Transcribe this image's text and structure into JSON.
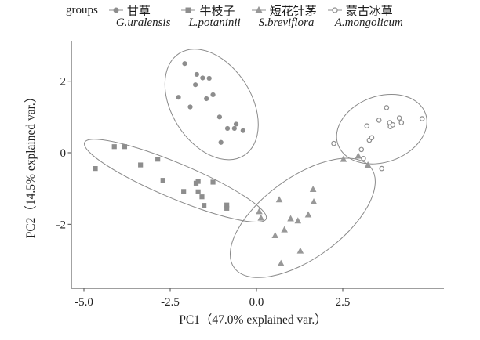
{
  "legend": {
    "title": "groups",
    "items": [
      {
        "zh": "甘草",
        "latin": "G.uralensis",
        "marker": "filled-circle"
      },
      {
        "zh": "牛枝子",
        "latin": "L.potaninii",
        "marker": "filled-square"
      },
      {
        "zh": "短花针茅",
        "latin": "S.breviflora",
        "marker": "filled-triangle"
      },
      {
        "zh": "蒙古冰草",
        "latin": "A.mongolicum",
        "marker": "open-circle"
      }
    ]
  },
  "chart_data": {
    "type": "scatter",
    "title": "",
    "xlabel": "PC1（47.0% explained var.）",
    "ylabel": "PC2（14.5% explained var.）",
    "xlim": [
      -5.4,
      5.4
    ],
    "ylim": [
      -3.8,
      3.1
    ],
    "xticks": [
      -5.0,
      -2.5,
      0.0,
      2.5
    ],
    "xtick_labels": [
      "-5.0",
      "-2.5",
      "0.0",
      "2.5"
    ],
    "yticks": [
      2,
      0,
      -2
    ],
    "ytick_labels": [
      "2",
      "0",
      "-2"
    ],
    "grid": false,
    "legend_position": "top",
    "colors": {
      "point": "#8d8d8d",
      "triangle_point": "#989898",
      "ellipse_stroke": "#8a8a8a",
      "axis": "#666666",
      "text": "#222222"
    },
    "series": [
      {
        "name": "甘草 G.uralensis",
        "marker": "filled-circle",
        "points": [
          [
            -2.08,
            2.49
          ],
          [
            -1.73,
            2.19
          ],
          [
            -1.56,
            2.09
          ],
          [
            -1.37,
            2.08
          ],
          [
            -1.77,
            1.9
          ],
          [
            -2.26,
            1.55
          ],
          [
            -1.45,
            1.51
          ],
          [
            -1.26,
            1.62
          ],
          [
            -1.92,
            1.28
          ],
          [
            -1.07,
            1.0
          ],
          [
            -0.59,
            0.8
          ],
          [
            -0.84,
            0.68
          ],
          [
            -0.64,
            0.68
          ],
          [
            -0.39,
            0.62
          ],
          [
            -1.03,
            0.29
          ]
        ]
      },
      {
        "name": "牛枝子 L.potaninii",
        "marker": "filled-square",
        "points": [
          [
            -4.67,
            -0.44
          ],
          [
            -4.12,
            0.17
          ],
          [
            -3.82,
            0.17
          ],
          [
            -3.36,
            -0.34
          ],
          [
            -2.86,
            -0.18
          ],
          [
            -2.71,
            -0.77
          ],
          [
            -2.11,
            -1.08
          ],
          [
            -1.75,
            -0.85
          ],
          [
            -1.69,
            -0.8
          ],
          [
            -1.26,
            -0.82
          ],
          [
            -1.69,
            -1.09
          ],
          [
            -1.58,
            -1.23
          ],
          [
            -1.52,
            -1.47
          ],
          [
            -0.86,
            -1.46
          ],
          [
            -0.86,
            -1.55
          ]
        ]
      },
      {
        "name": "短花针茅 S.breviflora",
        "marker": "filled-triangle",
        "points": [
          [
            0.08,
            -1.64
          ],
          [
            0.13,
            -1.82
          ],
          [
            0.66,
            -1.31
          ],
          [
            0.99,
            -1.84
          ],
          [
            1.2,
            -1.9
          ],
          [
            0.81,
            -2.15
          ],
          [
            0.54,
            -2.31
          ],
          [
            1.64,
            -1.02
          ],
          [
            1.66,
            -1.37
          ],
          [
            1.5,
            -1.73
          ],
          [
            1.27,
            -2.74
          ],
          [
            0.71,
            -3.09
          ],
          [
            2.52,
            -0.18
          ],
          [
            2.95,
            -0.09
          ],
          [
            3.23,
            -0.34
          ]
        ]
      },
      {
        "name": "蒙古冰草 A.mongolicum",
        "marker": "open-circle",
        "points": [
          [
            3.77,
            1.26
          ],
          [
            3.2,
            0.75
          ],
          [
            3.55,
            0.91
          ],
          [
            3.86,
            0.84
          ],
          [
            3.88,
            0.73
          ],
          [
            3.95,
            0.78
          ],
          [
            4.14,
            0.97
          ],
          [
            4.2,
            0.84
          ],
          [
            4.8,
            0.95
          ],
          [
            3.27,
            0.35
          ],
          [
            3.34,
            0.42
          ],
          [
            2.24,
            0.26
          ],
          [
            3.04,
            0.09
          ],
          [
            3.1,
            -0.16
          ],
          [
            3.63,
            -0.44
          ]
        ]
      }
    ],
    "ellipses": [
      {
        "series": "甘草 G.uralensis",
        "cx": -1.3,
        "cy": 1.35,
        "rx": 1.72,
        "ry": 1.13,
        "angle": -57.6
      },
      {
        "series": "牛枝子 L.potaninii",
        "cx": -2.35,
        "cy": -0.78,
        "rx": 2.8,
        "ry": 0.5,
        "angle": -22.8
      },
      {
        "series": "短花针茅 S.breviflora",
        "cx": 1.34,
        "cy": -1.82,
        "rx": 2.41,
        "ry": 1.15,
        "angle": 36.1
      },
      {
        "series": "蒙古冰草 A.mongolicum",
        "cx": 3.63,
        "cy": 0.66,
        "rx": 1.32,
        "ry": 0.94,
        "angle": 19.5
      }
    ]
  }
}
